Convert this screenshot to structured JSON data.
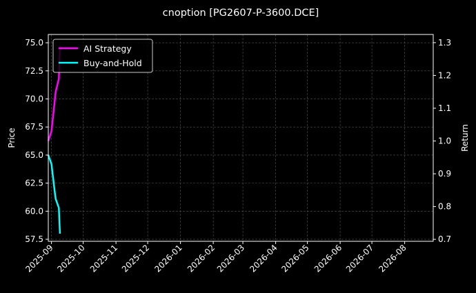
{
  "chart_data": {
    "type": "line",
    "title": "cnoption [PG2607-P-3600.DCE]",
    "xlabel": "",
    "ylabel_left": "Price",
    "ylabel_right": "Return",
    "xlim": [
      "2025-08-29",
      "2026-08-28"
    ],
    "ylim_left": [
      57.32,
      75.74
    ],
    "ylim_right": [
      0.694,
      1.325
    ],
    "x_ticks": [
      "2025-09",
      "2025-10",
      "2025-11",
      "2025-12",
      "2026-01",
      "2026-02",
      "2026-03",
      "2026-04",
      "2026-05",
      "2026-06",
      "2026-07",
      "2026-08"
    ],
    "y_ticks_left": [
      "57.5",
      "60.0",
      "62.5",
      "65.0",
      "67.5",
      "70.0",
      "72.5",
      "75.0"
    ],
    "y_ticks_right": [
      "0.7",
      "0.8",
      "0.9",
      "1.0",
      "1.1",
      "1.2",
      "1.3"
    ],
    "grid": true,
    "legend_placement": "upper-left",
    "x": [
      "2025-08-29",
      "2025-09-01",
      "2025-09-02",
      "2025-09-03",
      "2025-09-04",
      "2025-09-05",
      "2025-09-08",
      "2025-09-09"
    ],
    "series": [
      {
        "name": "AI Strategy",
        "axis": "right",
        "color": "#ff00ff",
        "values": [
          1.0,
          1.03,
          1.06,
          1.09,
          1.12,
          1.15,
          1.19,
          1.29
        ]
      },
      {
        "name": "Buy-and-Hold",
        "axis": "left",
        "color": "#00ffff",
        "values": [
          65.0,
          64.2,
          63.4,
          62.6,
          61.8,
          61.1,
          60.3,
          58.0
        ]
      }
    ]
  }
}
